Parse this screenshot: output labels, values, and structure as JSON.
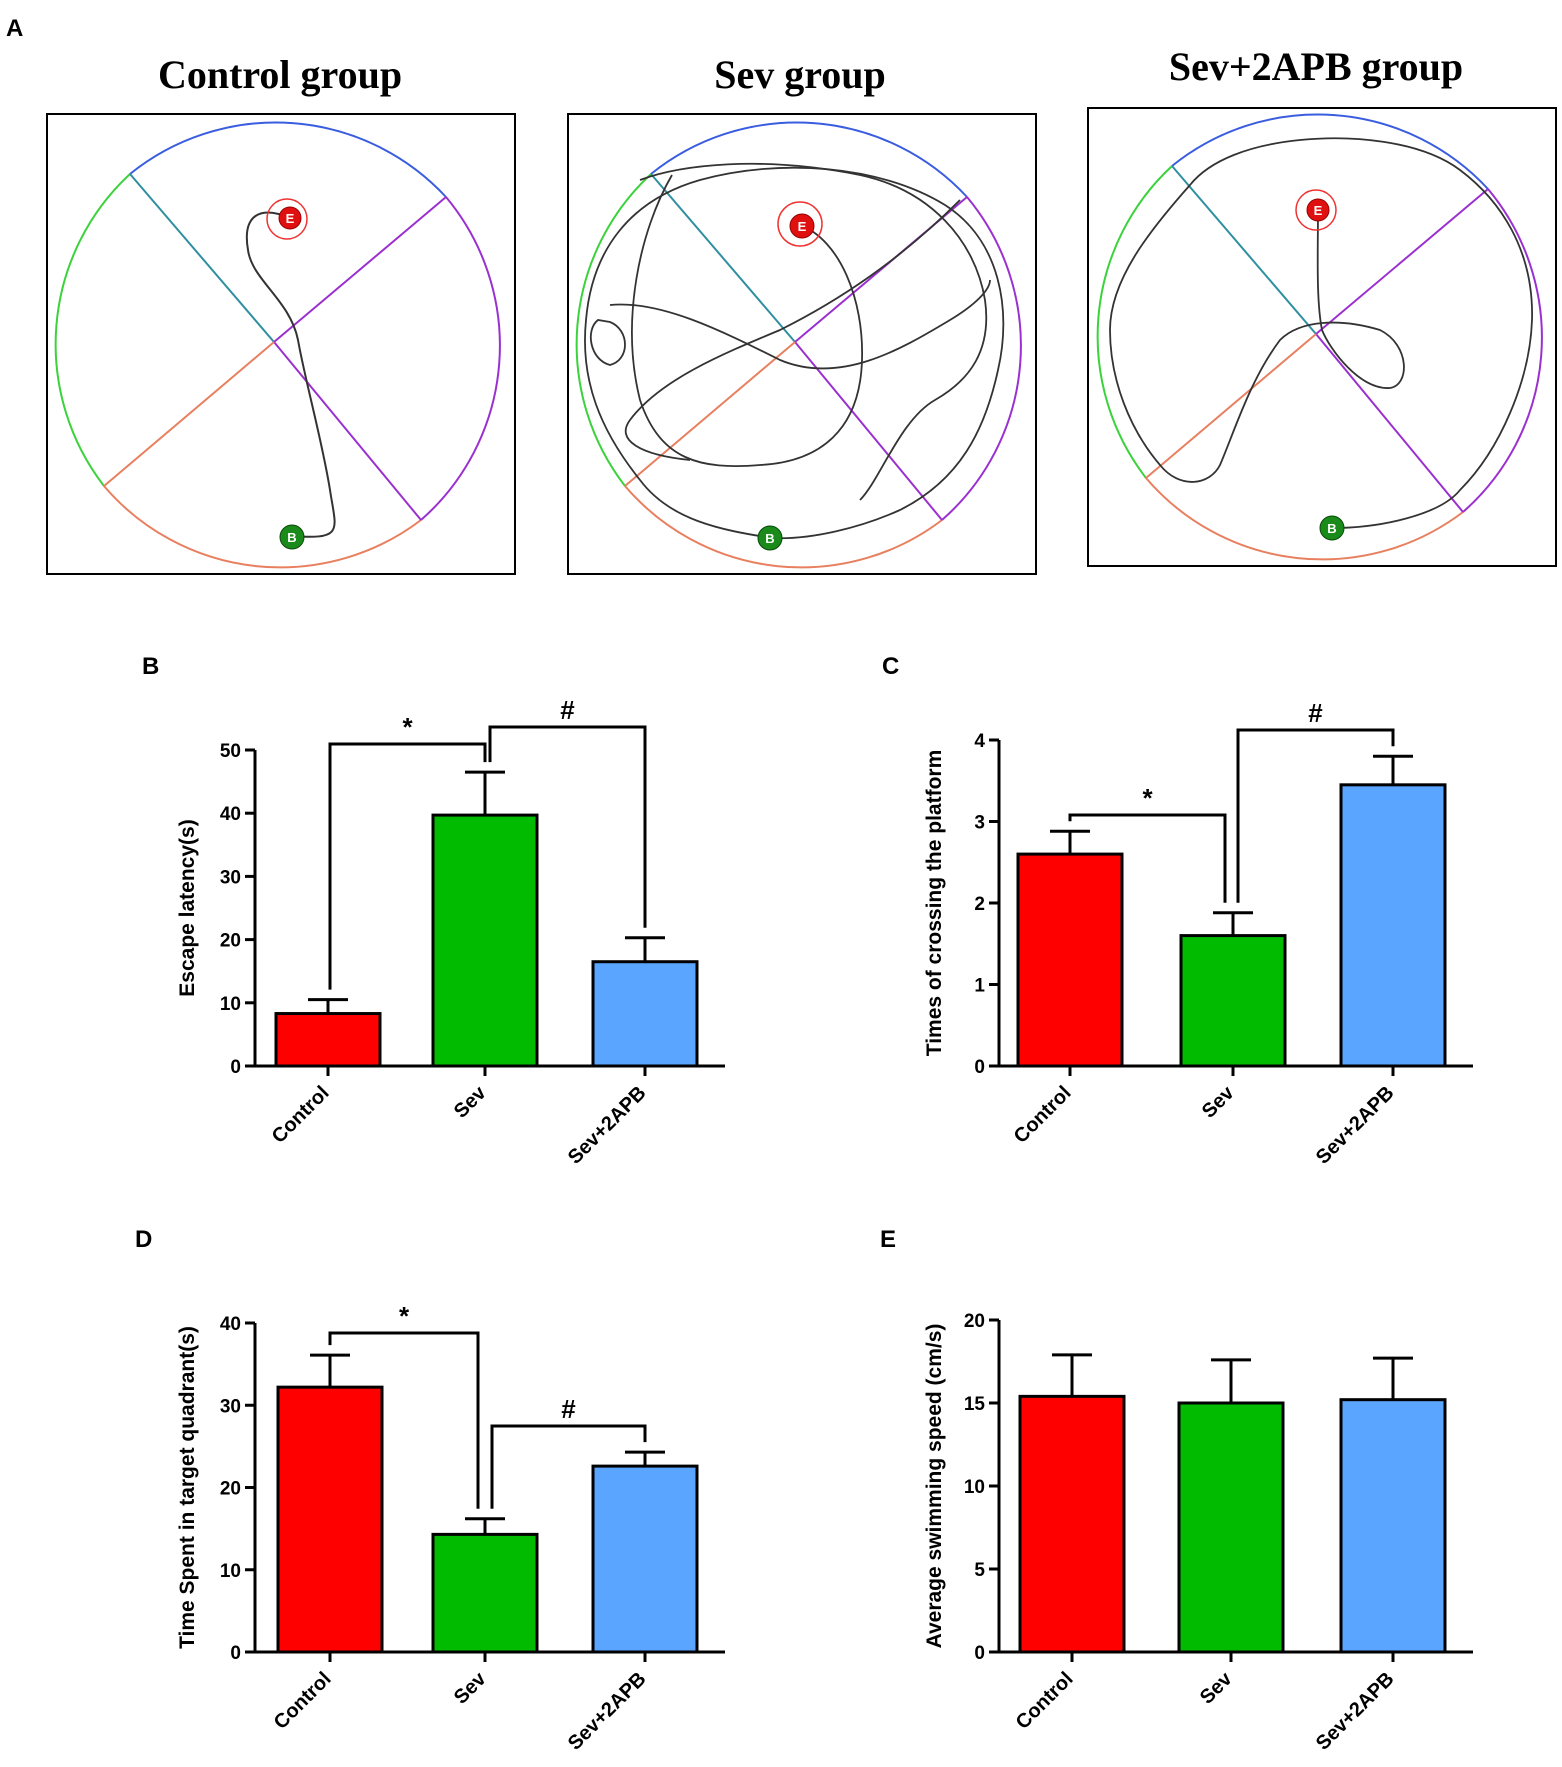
{
  "panel_a": {
    "label": "A",
    "groups": [
      {
        "title": "Control group",
        "start_marker": "B",
        "end_marker": "E"
      },
      {
        "title": "Sev group",
        "start_marker": "B",
        "end_marker": "E"
      },
      {
        "title": "Sev+2APB group",
        "start_marker": "B",
        "end_marker": "E"
      }
    ]
  },
  "colors": {
    "control": "#ff0000",
    "sev": "#00bb00",
    "sev2apb": "#5aa5ff",
    "quadrant_ne": "#9b30d0",
    "quadrant_nw": "#3a5de0",
    "quadrant_sw": "#e88060",
    "quadrant_w": "#3bd23b"
  },
  "chart_data": [
    {
      "panel": "B",
      "type": "bar",
      "categories": [
        "Control",
        "Sev",
        "Sev+2APB"
      ],
      "values": [
        8.3,
        39.7,
        16.5
      ],
      "errors": [
        2.2,
        6.8,
        3.8
      ],
      "ylabel": "Escape latency(s)",
      "ylim": [
        0,
        50
      ],
      "yticks": [
        "0",
        "10",
        "20",
        "30",
        "40",
        "50"
      ],
      "comparisons": [
        {
          "from": "Control",
          "to": "Sev",
          "label": "*"
        },
        {
          "from": "Sev",
          "to": "Sev+2APB",
          "label": "#"
        }
      ]
    },
    {
      "panel": "C",
      "type": "bar",
      "categories": [
        "Control",
        "Sev",
        "Sev+2APB"
      ],
      "values": [
        2.6,
        1.6,
        3.45
      ],
      "errors": [
        0.28,
        0.28,
        0.35
      ],
      "ylabel": "Times of crossing the platform",
      "ylim": [
        0,
        4
      ],
      "yticks": [
        "0",
        "1",
        "2",
        "3",
        "4"
      ],
      "comparisons": [
        {
          "from": "Control",
          "to": "Sev",
          "label": "*"
        },
        {
          "from": "Sev",
          "to": "Sev+2APB",
          "label": "#"
        }
      ]
    },
    {
      "panel": "D",
      "type": "bar",
      "categories": [
        "Control",
        "Sev",
        "Sev+2APB"
      ],
      "values": [
        32.2,
        14.3,
        22.6
      ],
      "errors": [
        3.9,
        1.9,
        1.7
      ],
      "ylabel": "Time Spent in target quadrant(s)",
      "ylim": [
        0,
        40
      ],
      "yticks": [
        "0",
        "10",
        "20",
        "30",
        "40"
      ],
      "comparisons": [
        {
          "from": "Control",
          "to": "Sev",
          "label": "*"
        },
        {
          "from": "Sev",
          "to": "Sev+2APB",
          "label": "#"
        }
      ]
    },
    {
      "panel": "E",
      "type": "bar",
      "categories": [
        "Control",
        "Sev",
        "Sev+2APB"
      ],
      "values": [
        15.4,
        15.0,
        15.2
      ],
      "errors": [
        2.5,
        2.6,
        2.5
      ],
      "ylabel": "Average swimming speed (cm/s)",
      "ylim": [
        0,
        20
      ],
      "yticks": [
        "0",
        "5",
        "10",
        "15",
        "20"
      ],
      "comparisons": []
    }
  ]
}
